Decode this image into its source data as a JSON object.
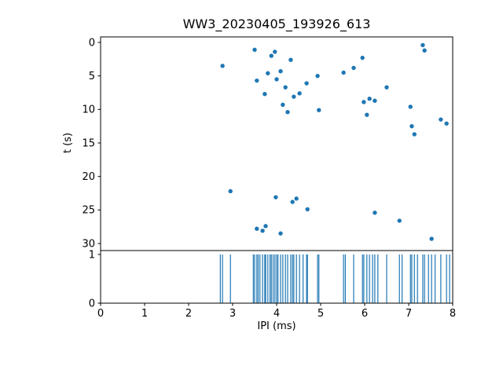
{
  "figure": {
    "title": "WW3_20230405_193926_613"
  },
  "axes": {
    "top": {
      "ylabel": "t (s)"
    },
    "bottom": {
      "xlabel": "IPI (ms)"
    }
  },
  "chart_data": [
    {
      "type": "scatter",
      "title": "WW3_20230405_193926_613",
      "xlabel": "",
      "ylabel": "t (s)",
      "xlim": [
        0,
        8
      ],
      "ylim": [
        0,
        30
      ],
      "y_axis_inverted": true,
      "yticks": [
        0,
        5,
        10,
        15,
        20,
        25,
        30
      ],
      "grid": false,
      "legend": "none",
      "marker_color": "#1f77b4",
      "points": [
        [
          2.77,
          3.5
        ],
        [
          3.5,
          1.1
        ],
        [
          3.55,
          5.7
        ],
        [
          3.73,
          7.7
        ],
        [
          3.8,
          4.6
        ],
        [
          3.88,
          2.0
        ],
        [
          3.96,
          1.4
        ],
        [
          4.0,
          5.5
        ],
        [
          4.09,
          4.3
        ],
        [
          4.14,
          9.3
        ],
        [
          4.2,
          6.7
        ],
        [
          4.25,
          10.4
        ],
        [
          4.32,
          2.6
        ],
        [
          4.39,
          8.1
        ],
        [
          4.52,
          7.6
        ],
        [
          4.68,
          6.1
        ],
        [
          4.93,
          5.0
        ],
        [
          4.96,
          10.1
        ],
        [
          5.52,
          4.5
        ],
        [
          5.75,
          3.8
        ],
        [
          5.95,
          2.3
        ],
        [
          5.98,
          8.9
        ],
        [
          6.05,
          10.8
        ],
        [
          6.11,
          8.4
        ],
        [
          6.23,
          8.7
        ],
        [
          6.5,
          6.7
        ],
        [
          7.04,
          9.6
        ],
        [
          7.07,
          12.5
        ],
        [
          7.13,
          13.7
        ],
        [
          7.32,
          0.4
        ],
        [
          7.36,
          1.2
        ],
        [
          7.73,
          11.5
        ],
        [
          7.86,
          12.1
        ],
        [
          2.95,
          22.2
        ],
        [
          3.55,
          27.8
        ],
        [
          3.68,
          28.1
        ],
        [
          3.75,
          27.4
        ],
        [
          3.98,
          23.1
        ],
        [
          4.09,
          28.5
        ],
        [
          4.36,
          23.8
        ],
        [
          4.45,
          23.3
        ],
        [
          4.7,
          24.9
        ],
        [
          6.23,
          25.4
        ],
        [
          6.79,
          26.6
        ],
        [
          7.52,
          29.3
        ]
      ]
    },
    {
      "type": "line",
      "style": "vertical-spikes",
      "xlabel": "IPI (ms)",
      "ylabel": "",
      "xlim": [
        0,
        8
      ],
      "ylim": [
        0,
        1
      ],
      "yticks": [
        0,
        1
      ],
      "xticks": [
        0,
        1,
        2,
        3,
        4,
        5,
        6,
        7,
        8
      ],
      "grid": false,
      "line_color": "#1f77b4",
      "spike_y": [
        0,
        1
      ],
      "spike_x": [
        2.72,
        2.77,
        2.95,
        3.47,
        3.5,
        3.55,
        3.58,
        3.62,
        3.68,
        3.73,
        3.75,
        3.8,
        3.85,
        3.88,
        3.92,
        3.96,
        4.0,
        4.03,
        4.09,
        4.14,
        4.2,
        4.25,
        4.32,
        4.36,
        4.39,
        4.45,
        4.52,
        4.6,
        4.68,
        4.7,
        4.93,
        4.96,
        5.52,
        5.56,
        5.75,
        5.95,
        5.98,
        6.05,
        6.11,
        6.18,
        6.23,
        6.3,
        6.5,
        6.79,
        6.85,
        7.04,
        7.07,
        7.13,
        7.2,
        7.32,
        7.36,
        7.45,
        7.52,
        7.6,
        7.73,
        7.86,
        7.93
      ]
    }
  ]
}
